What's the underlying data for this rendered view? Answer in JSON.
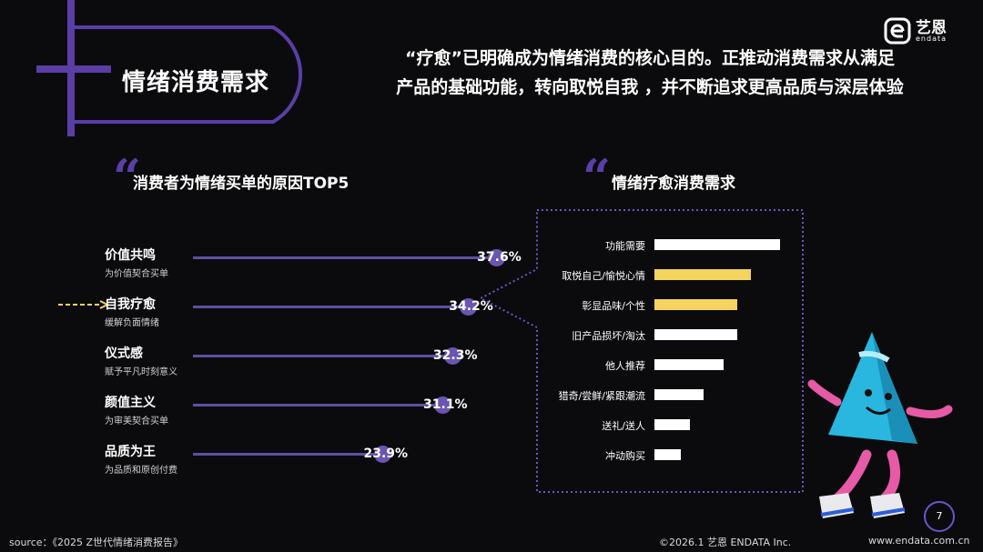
{
  "section_title": "情绪消费需求",
  "headline": {
    "line1": "“疗愈”已明确成为情绪消费的核心目的。正推动消费需求从满足",
    "line2": "产品的基础功能，转向取悦自我 ，并不断追求更高品质与深层体验"
  },
  "logo": {
    "cn": "艺恩",
    "en": "endata"
  },
  "left_panel": {
    "title": "消费者为情绪买单的原因TOP5"
  },
  "right_panel": {
    "title": "情绪疗愈消费需求"
  },
  "chart_data": [
    {
      "type": "bar",
      "title": "消费者为情绪买单的原因TOP5",
      "categories": [
        "价值共鸣",
        "自我疗愈",
        "仪式感",
        "颜值主义",
        "品质为王"
      ],
      "descriptions": [
        "为价值契合买单",
        "缓解负面情绪",
        "赋予平凡时刻意义",
        "为审美契合买单",
        "为品质和原创付费"
      ],
      "values": [
        37.6,
        34.2,
        32.3,
        31.1,
        23.9
      ],
      "value_labels": [
        "37.6%",
        "34.2%",
        "32.3%",
        "31.1%",
        "23.9%"
      ],
      "highlight": "自我疗愈",
      "colors": {
        "line": "#5e4fa2",
        "dot": "#6a55b3"
      }
    },
    {
      "type": "bar",
      "title": "情绪疗愈消费需求",
      "categories": [
        "功能需要",
        "取悦自己/愉悦心情",
        "彰显品味/个性",
        "旧产品损坏/淘汰",
        "他人推荐",
        "猎奇/尝鲜/紧跟潮流",
        "送礼/送人",
        "冲动购买"
      ],
      "values": [
        100,
        77,
        66,
        66,
        55,
        39,
        28,
        21
      ],
      "highlighted": [
        "取悦自己/愉悦心情",
        "彰显品味/个性"
      ],
      "colors": {
        "default": "#ffffff",
        "highlight": "#f4d35e"
      }
    }
  ],
  "page_number": "7",
  "footer": {
    "source": "source：《2025 Z世代情绪消费报告》",
    "copyright": "©2026.1  艺恩 ENDATA Inc.",
    "website": "www.endata.com.cn"
  }
}
